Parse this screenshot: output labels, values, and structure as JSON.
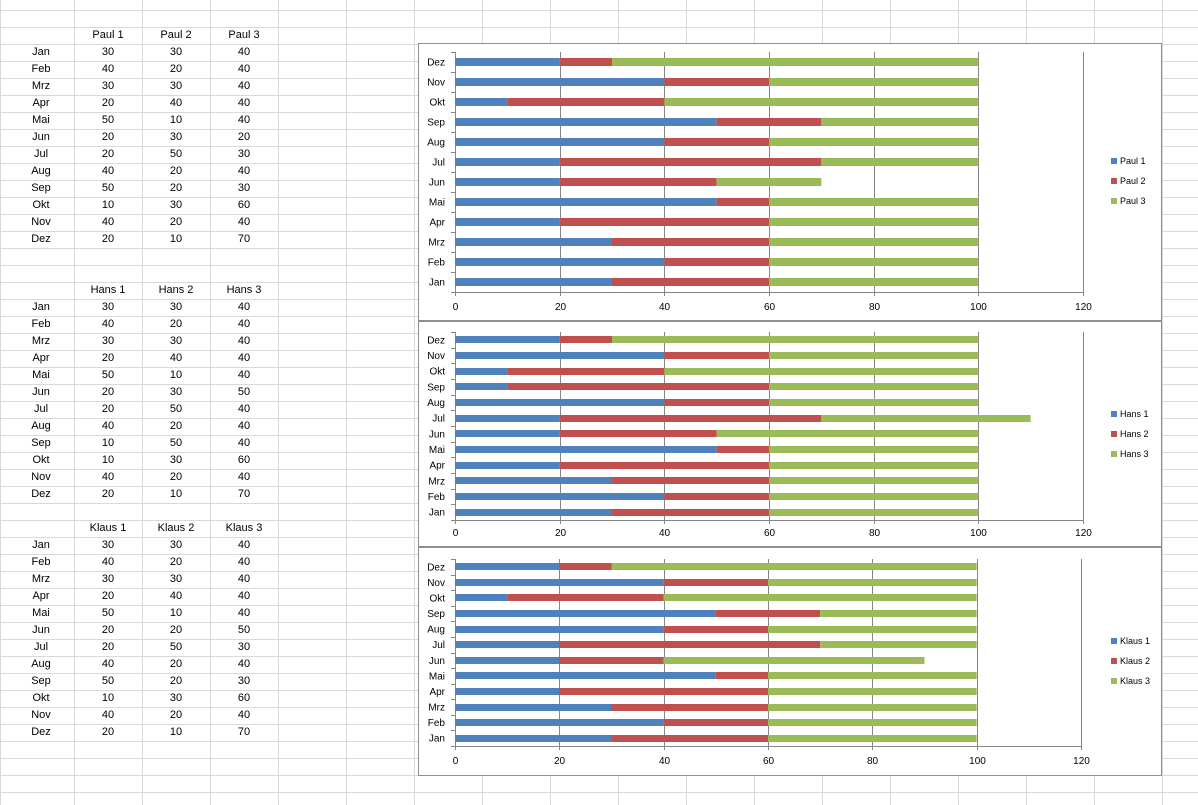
{
  "sheet": {
    "tables": [
      {
        "headers": [
          "Paul 1",
          "Paul 2",
          "Paul 3"
        ],
        "rows": [
          [
            "Jan",
            "30",
            "30",
            "40"
          ],
          [
            "Feb",
            "40",
            "20",
            "40"
          ],
          [
            "Mrz",
            "30",
            "30",
            "40"
          ],
          [
            "Apr",
            "20",
            "40",
            "40"
          ],
          [
            "Mai",
            "50",
            "10",
            "40"
          ],
          [
            "Jun",
            "20",
            "30",
            "20"
          ],
          [
            "Jul",
            "20",
            "50",
            "30"
          ],
          [
            "Aug",
            "40",
            "20",
            "40"
          ],
          [
            "Sep",
            "50",
            "20",
            "30"
          ],
          [
            "Okt",
            "10",
            "30",
            "60"
          ],
          [
            "Nov",
            "40",
            "20",
            "40"
          ],
          [
            "Dez",
            "20",
            "10",
            "70"
          ]
        ]
      },
      {
        "headers": [
          "Hans 1",
          "Hans 2",
          "Hans 3"
        ],
        "rows": [
          [
            "Jan",
            "30",
            "30",
            "40"
          ],
          [
            "Feb",
            "40",
            "20",
            "40"
          ],
          [
            "Mrz",
            "30",
            "30",
            "40"
          ],
          [
            "Apr",
            "20",
            "40",
            "40"
          ],
          [
            "Mai",
            "50",
            "10",
            "40"
          ],
          [
            "Jun",
            "20",
            "30",
            "50"
          ],
          [
            "Jul",
            "20",
            "50",
            "40"
          ],
          [
            "Aug",
            "40",
            "20",
            "40"
          ],
          [
            "Sep",
            "10",
            "50",
            "40"
          ],
          [
            "Okt",
            "10",
            "30",
            "60"
          ],
          [
            "Nov",
            "40",
            "20",
            "40"
          ],
          [
            "Dez",
            "20",
            "10",
            "70"
          ]
        ]
      },
      {
        "headers": [
          "Klaus 1",
          "Klaus 2",
          "Klaus 3"
        ],
        "rows": [
          [
            "Jan",
            "30",
            "30",
            "40"
          ],
          [
            "Feb",
            "40",
            "20",
            "40"
          ],
          [
            "Mrz",
            "30",
            "30",
            "40"
          ],
          [
            "Apr",
            "20",
            "40",
            "40"
          ],
          [
            "Mai",
            "50",
            "10",
            "40"
          ],
          [
            "Jun",
            "20",
            "20",
            "50"
          ],
          [
            "Jul",
            "20",
            "50",
            "30"
          ],
          [
            "Aug",
            "40",
            "20",
            "40"
          ],
          [
            "Sep",
            "50",
            "20",
            "30"
          ],
          [
            "Okt",
            "10",
            "30",
            "60"
          ],
          [
            "Nov",
            "40",
            "20",
            "40"
          ],
          [
            "Dez",
            "20",
            "10",
            "70"
          ]
        ]
      }
    ]
  },
  "colors": {
    "series1": "#4f81bd",
    "series2": "#c0504d",
    "series3": "#9bbb59",
    "gridline": "#d9d9d9",
    "axis_gridline": "#868686"
  },
  "chart_data": [
    {
      "type": "bar",
      "stacked": true,
      "orientation": "horizontal",
      "categories": [
        "Jan",
        "Feb",
        "Mrz",
        "Apr",
        "Mai",
        "Jun",
        "Jul",
        "Aug",
        "Sep",
        "Okt",
        "Nov",
        "Dez"
      ],
      "series": [
        {
          "name": "Paul 1",
          "values": [
            30,
            40,
            30,
            20,
            50,
            20,
            20,
            40,
            50,
            10,
            40,
            20
          ]
        },
        {
          "name": "Paul 2",
          "values": [
            30,
            20,
            30,
            40,
            10,
            30,
            50,
            20,
            20,
            30,
            20,
            10
          ]
        },
        {
          "name": "Paul 3",
          "values": [
            40,
            40,
            40,
            40,
            40,
            20,
            30,
            40,
            30,
            60,
            40,
            70
          ]
        }
      ],
      "xlim": [
        0,
        120
      ],
      "ticks": [
        "0",
        "20",
        "40",
        "60",
        "80",
        "100",
        "120"
      ],
      "legend": "right"
    },
    {
      "type": "bar",
      "stacked": true,
      "orientation": "horizontal",
      "categories": [
        "Jan",
        "Feb",
        "Mrz",
        "Apr",
        "Mai",
        "Jun",
        "Jul",
        "Aug",
        "Sep",
        "Okt",
        "Nov",
        "Dez"
      ],
      "series": [
        {
          "name": "Hans 1",
          "values": [
            30,
            40,
            30,
            20,
            50,
            20,
            20,
            40,
            10,
            10,
            40,
            20
          ]
        },
        {
          "name": "Hans 2",
          "values": [
            30,
            20,
            30,
            40,
            10,
            30,
            50,
            20,
            50,
            30,
            20,
            10
          ]
        },
        {
          "name": "Hans 3",
          "values": [
            40,
            40,
            40,
            40,
            40,
            50,
            40,
            40,
            40,
            60,
            40,
            70
          ]
        }
      ],
      "xlim": [
        0,
        120
      ],
      "ticks": [
        "0",
        "20",
        "40",
        "60",
        "80",
        "100",
        "120"
      ],
      "legend": "right"
    },
    {
      "type": "bar",
      "stacked": true,
      "orientation": "horizontal",
      "categories": [
        "Jan",
        "Feb",
        "Mrz",
        "Apr",
        "Mai",
        "Jun",
        "Jul",
        "Aug",
        "Sep",
        "Okt",
        "Nov",
        "Dez"
      ],
      "series": [
        {
          "name": "Klaus 1",
          "values": [
            30,
            40,
            30,
            20,
            50,
            20,
            20,
            40,
            50,
            10,
            40,
            20
          ]
        },
        {
          "name": "Klaus 2",
          "values": [
            30,
            20,
            30,
            40,
            10,
            20,
            50,
            20,
            20,
            30,
            20,
            10
          ]
        },
        {
          "name": "Klaus 3",
          "values": [
            40,
            40,
            40,
            40,
            40,
            50,
            30,
            40,
            30,
            60,
            40,
            70
          ]
        }
      ],
      "xlim": [
        0,
        120
      ],
      "ticks": [
        "0",
        "20",
        "40",
        "60",
        "80",
        "100",
        "120"
      ],
      "legend": "right"
    }
  ]
}
